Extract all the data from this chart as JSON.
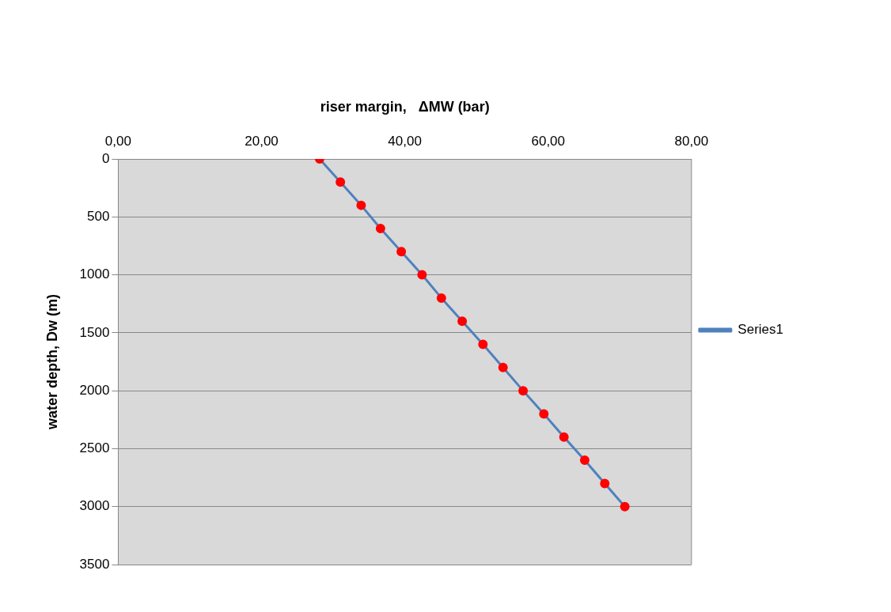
{
  "chart_data": {
    "type": "line",
    "xlabel": "riser margin,   ΔMW (bar)",
    "ylabel": "water depth, Dw (m)",
    "xlim": [
      0,
      80
    ],
    "xticks": [
      {
        "value": 0,
        "label": "0,00"
      },
      {
        "value": 20,
        "label": "20,00"
      },
      {
        "value": 40,
        "label": "40,00"
      },
      {
        "value": 60,
        "label": "60,00"
      },
      {
        "value": 80,
        "label": "80,00"
      }
    ],
    "ylim": [
      3500,
      0
    ],
    "yticks": [
      0,
      500,
      1000,
      1500,
      2000,
      2500,
      3000,
      3500
    ],
    "grid": "y",
    "legend": "right",
    "marker": "circle",
    "line_style": "solid",
    "series": [
      {
        "name": "Series1",
        "color": "#4f81bd",
        "x": [
          28.1,
          31.0,
          33.9,
          36.6,
          39.5,
          42.4,
          45.1,
          48.0,
          50.9,
          53.7,
          56.5,
          59.4,
          62.2,
          65.1,
          67.9,
          70.7
        ],
        "values": [
          0,
          200,
          400,
          600,
          800,
          1000,
          1200,
          1400,
          1600,
          1800,
          2000,
          2200,
          2400,
          2600,
          2800,
          3000
        ]
      }
    ]
  }
}
